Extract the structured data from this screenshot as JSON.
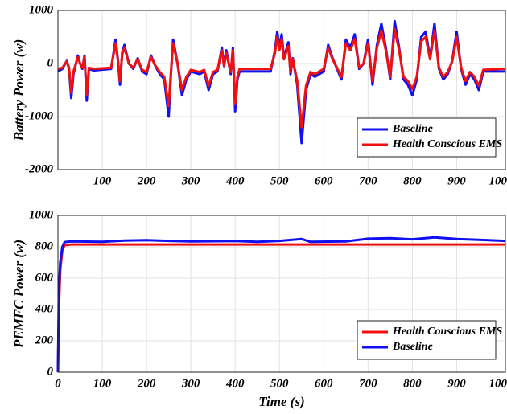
{
  "chart_data": [
    {
      "type": "line",
      "ylabel": "Battery Power (w)",
      "xlim": [
        0,
        1010
      ],
      "ylim": [
        -2000,
        1000
      ],
      "xticks": [
        100,
        200,
        300,
        400,
        500,
        600,
        700,
        800,
        900,
        1000
      ],
      "yticks": [
        -2000,
        -1000,
        0,
        1000
      ],
      "grid": true,
      "legend": "lower right",
      "x": [
        0,
        10,
        20,
        25,
        30,
        35,
        45,
        50,
        55,
        60,
        65,
        70,
        80,
        120,
        130,
        135,
        140,
        145,
        150,
        160,
        170,
        180,
        190,
        200,
        210,
        220,
        230,
        240,
        250,
        255,
        260,
        270,
        280,
        290,
        300,
        320,
        330,
        340,
        350,
        360,
        370,
        375,
        380,
        390,
        395,
        400,
        405,
        410,
        480,
        490,
        495,
        500,
        505,
        510,
        520,
        525,
        530,
        540,
        550,
        560,
        570,
        580,
        600,
        610,
        620,
        625,
        640,
        650,
        660,
        670,
        680,
        690,
        700,
        710,
        720,
        730,
        740,
        750,
        760,
        770,
        780,
        790,
        800,
        810,
        820,
        830,
        840,
        850,
        860,
        870,
        880,
        890,
        900,
        910,
        920,
        930,
        940,
        950,
        960,
        1000,
        1010
      ],
      "series": [
        {
          "name": "Baseline",
          "color": "#1010f0",
          "values": [
            -150,
            -100,
            50,
            -100,
            -650,
            -200,
            150,
            0,
            -100,
            150,
            -700,
            -100,
            -130,
            -100,
            450,
            100,
            -400,
            200,
            350,
            0,
            -100,
            100,
            -150,
            -200,
            150,
            -50,
            -200,
            -300,
            -1000,
            -200,
            450,
            0,
            -600,
            -300,
            -150,
            -200,
            -150,
            -500,
            -200,
            -150,
            300,
            -50,
            250,
            -200,
            300,
            -900,
            -300,
            -150,
            -150,
            250,
            600,
            300,
            550,
            100,
            400,
            -200,
            100,
            -400,
            -1500,
            -500,
            -200,
            -250,
            -150,
            350,
            100,
            0,
            -300,
            450,
            300,
            550,
            -100,
            0,
            450,
            -400,
            350,
            750,
            300,
            -300,
            800,
            300,
            -300,
            -400,
            -600,
            -300,
            500,
            600,
            100,
            750,
            -100,
            -300,
            -200,
            50,
            600,
            -100,
            -400,
            -200,
            -300,
            -500,
            -150,
            -150,
            -150
          ]
        },
        {
          "name": "Health Conscious EMS",
          "color": "#f01010",
          "values": [
            -100,
            -80,
            40,
            -80,
            -550,
            -150,
            120,
            0,
            -80,
            120,
            -600,
            -80,
            -100,
            -80,
            380,
            80,
            -330,
            170,
            300,
            0,
            -80,
            80,
            -120,
            -160,
            120,
            -40,
            -160,
            -250,
            -800,
            -160,
            380,
            0,
            -500,
            -250,
            -120,
            -160,
            -120,
            -420,
            -160,
            -120,
            250,
            -40,
            200,
            -160,
            250,
            -750,
            -250,
            -100,
            -100,
            200,
            500,
            250,
            460,
            80,
            330,
            -160,
            80,
            -330,
            -1200,
            -420,
            -160,
            -200,
            -100,
            300,
            80,
            0,
            -250,
            380,
            250,
            460,
            -80,
            0,
            380,
            -330,
            300,
            620,
            250,
            -250,
            650,
            250,
            -250,
            -330,
            -480,
            -250,
            420,
            500,
            80,
            620,
            -80,
            -250,
            -160,
            40,
            500,
            -80,
            -330,
            -160,
            -250,
            -420,
            -120,
            -100,
            -100
          ]
        }
      ]
    },
    {
      "type": "line",
      "ylabel": "PEMFC Power (w)",
      "xlabel": "Time (s)",
      "xlim": [
        0,
        1010
      ],
      "ylim": [
        0,
        1000
      ],
      "xticks": [
        0,
        100,
        200,
        300,
        400,
        500,
        600,
        700,
        800,
        900,
        1000
      ],
      "yticks": [
        0,
        200,
        400,
        600,
        800,
        1000
      ],
      "grid": true,
      "legend": "lower right",
      "x": [
        0,
        2,
        5,
        10,
        15,
        30,
        100,
        150,
        200,
        250,
        300,
        400,
        450,
        500,
        550,
        570,
        650,
        700,
        750,
        800,
        850,
        900,
        950,
        1010
      ],
      "series": [
        {
          "name": "Health Conscious EMS",
          "color": "#f01010",
          "values": [
            0,
            400,
            650,
            780,
            810,
            815,
            815,
            815,
            815,
            815,
            815,
            815,
            815,
            815,
            815,
            815,
            815,
            815,
            815,
            815,
            815,
            815,
            815,
            815
          ]
        },
        {
          "name": "Baseline",
          "color": "#1010f0",
          "values": [
            0,
            500,
            700,
            800,
            830,
            835,
            832,
            840,
            842,
            838,
            835,
            837,
            832,
            838,
            850,
            832,
            835,
            852,
            855,
            848,
            860,
            850,
            845,
            838
          ]
        }
      ]
    }
  ]
}
